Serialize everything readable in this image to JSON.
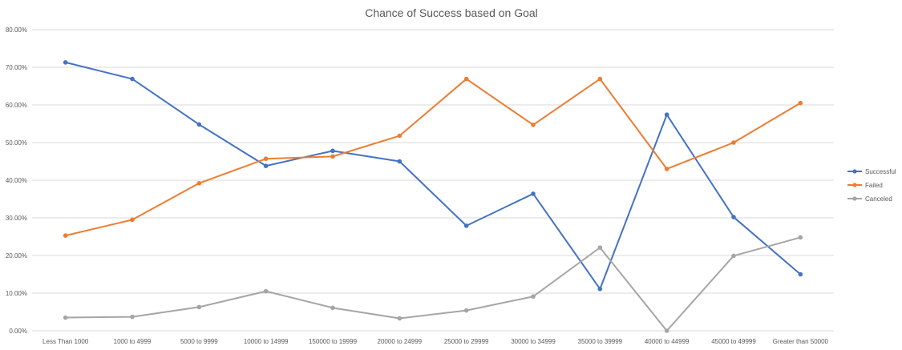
{
  "chart_data": {
    "type": "line",
    "title": "Chance of Success based on Goal",
    "xlabel": "",
    "ylabel": "",
    "categories": [
      "Less Than 1000",
      "1000 to 4999",
      "5000 to 9999",
      "10000 to 14999",
      "150000 to 19999",
      "20000 to 24999",
      "25000 to 29999",
      "30000 to 34999",
      "35000 to 39999",
      "40000 to 44999",
      "45000 to 49999",
      "Greater than 50000"
    ],
    "ylim": [
      0,
      80
    ],
    "yticks": [
      0,
      10,
      20,
      30,
      40,
      50,
      60,
      70,
      80
    ],
    "ytick_labels": [
      "0.00%",
      "10.00%",
      "20.00%",
      "30.00%",
      "40.00%",
      "50.00%",
      "60.00%",
      "70.00%",
      "80.00%"
    ],
    "grid": true,
    "legend_position": "right",
    "series": [
      {
        "name": "Successful",
        "color": "#4472c4",
        "values": [
          71.3,
          66.9,
          54.8,
          43.8,
          47.8,
          45.0,
          27.9,
          36.4,
          11.1,
          57.4,
          30.2,
          15.0
        ]
      },
      {
        "name": "Failed",
        "color": "#ed7d31",
        "values": [
          25.3,
          29.5,
          39.2,
          45.7,
          46.3,
          51.8,
          66.9,
          54.7,
          66.9,
          43.0,
          50.0,
          60.5
        ]
      },
      {
        "name": "Canceled",
        "color": "#a5a5a5",
        "values": [
          3.5,
          3.7,
          6.3,
          10.5,
          6.1,
          3.3,
          5.4,
          9.1,
          22.1,
          0.0,
          19.9,
          24.8
        ]
      }
    ]
  }
}
